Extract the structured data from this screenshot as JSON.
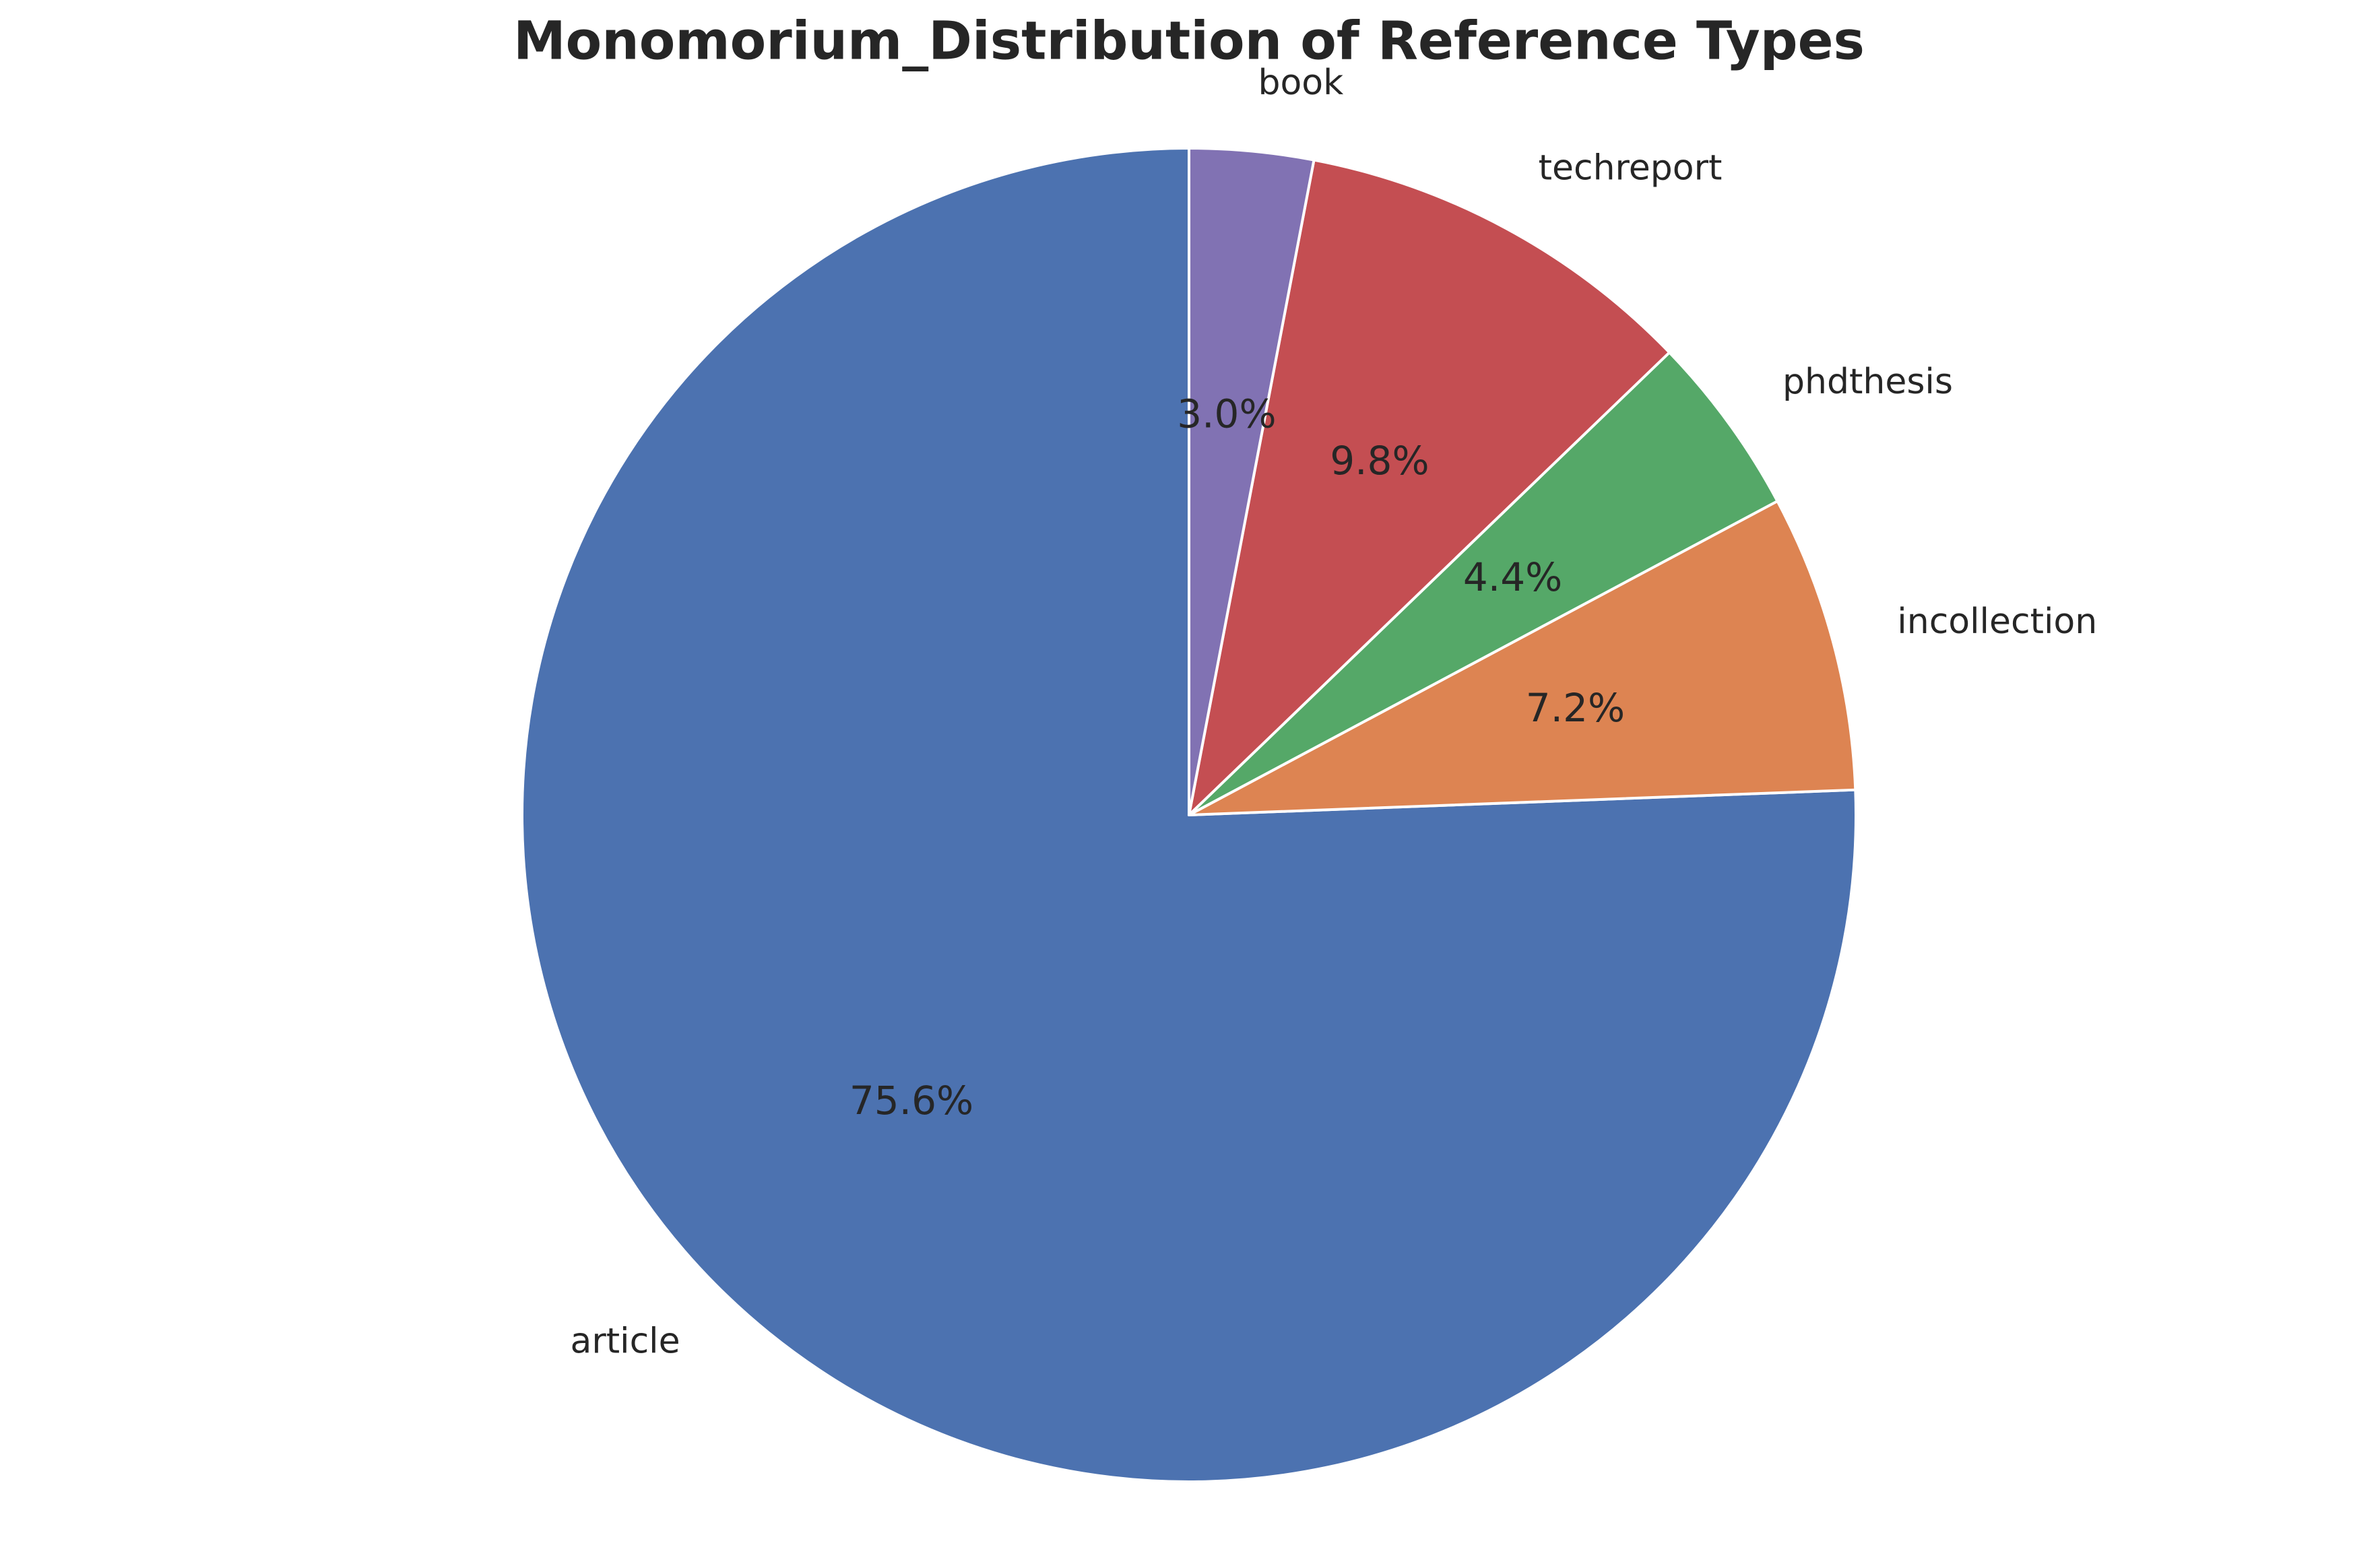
{
  "chart_data": {
    "type": "pie",
    "title": "Monomorium_Distribution of Reference Types",
    "categories": [
      "article",
      "incollection",
      "phdthesis",
      "techreport",
      "book"
    ],
    "values": [
      75.6,
      7.2,
      4.4,
      9.8,
      3.0
    ],
    "value_labels": [
      "75.6%",
      "7.2%",
      "4.4%",
      "9.8%",
      "3.0%"
    ],
    "colors": [
      "#4c72b0",
      "#dd8452",
      "#55a868",
      "#c44e52",
      "#8172b3"
    ],
    "start_angle_deg": 90,
    "direction": "counterclockwise",
    "edge_color": "#ffffff",
    "legend": "none"
  }
}
